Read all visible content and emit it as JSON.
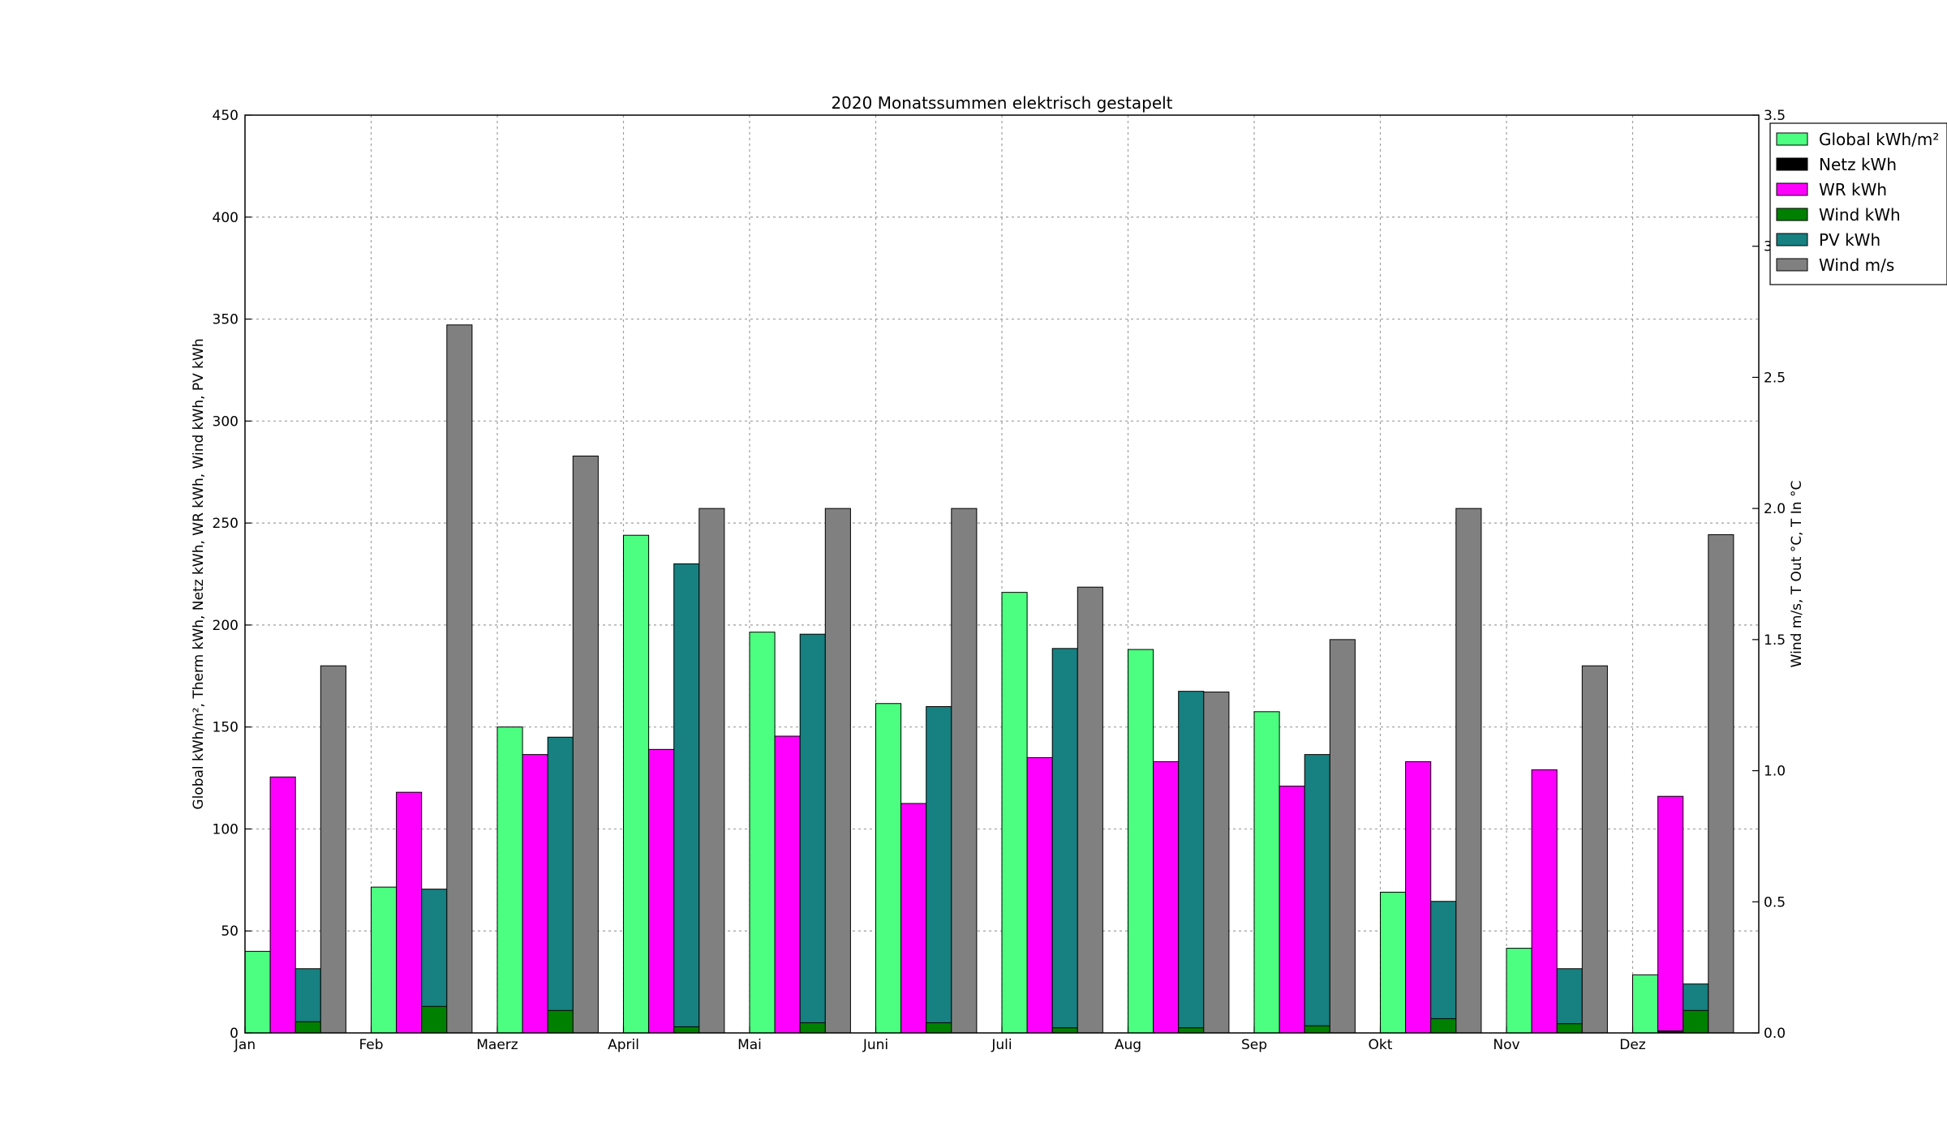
{
  "chart_data": {
    "type": "bar",
    "title": "2020 Monatssummen elektrisch gestapelt",
    "ylabel_left": "Global kWh/m², Therm kWh, Netz kWh, WR kWh, Wind kWh, PV kWh",
    "ylabel_right": "Wind m/s, T Out °C, T In °C",
    "ylim_left": [
      0,
      450
    ],
    "ylim_right": [
      0,
      3.5
    ],
    "yticks_left": [
      "0",
      "50",
      "100",
      "150",
      "200",
      "250",
      "300",
      "350",
      "400",
      "450"
    ],
    "yticks_right": [
      "0.0",
      "0.5",
      "1.0",
      "1.5",
      "2.0",
      "2.5",
      "3.0",
      "3.5"
    ],
    "grid": true,
    "legend_position": "top-right",
    "categories": [
      "Jan",
      "Feb",
      "Maerz",
      "April",
      "Mai",
      "Juni",
      "Juli",
      "Aug",
      "Sep",
      "Okt",
      "Nov",
      "Dez"
    ],
    "series": [
      {
        "name": "Global kWh/m²",
        "axis": "left",
        "color": "#4dff80",
        "values": [
          40,
          71.5,
          150,
          244,
          196.5,
          161.5,
          216,
          188,
          157.5,
          69,
          41.5,
          28.5
        ]
      },
      {
        "name": "Netz kWh",
        "axis": "left",
        "color": "#000000",
        "stacked_under": "WR kWh",
        "values": [
          0,
          0,
          0,
          0,
          0,
          0,
          0,
          0,
          0,
          0,
          0,
          1
        ]
      },
      {
        "name": "WR kWh",
        "axis": "left",
        "color": "#ff00ff",
        "values": [
          125.5,
          118,
          136.5,
          139,
          145.5,
          112.5,
          135,
          133,
          121,
          133,
          129,
          115
        ]
      },
      {
        "name": "Wind kWh",
        "axis": "left",
        "color": "#008000",
        "values": [
          5.5,
          13,
          11,
          3,
          5,
          5,
          2.5,
          2.5,
          3.5,
          7,
          4.5,
          11
        ]
      },
      {
        "name": "PV kWh",
        "axis": "left",
        "color": "#178080",
        "stacked_on": "Wind kWh",
        "values": [
          31.5,
          70.5,
          145,
          230,
          195.5,
          160,
          188.5,
          167.5,
          136.5,
          64.5,
          31.5,
          24
        ]
      },
      {
        "name": "Wind m/s",
        "axis": "right",
        "color": "#808080",
        "values": [
          1.4,
          2.7,
          2.2,
          2.0,
          2.0,
          2.0,
          1.7,
          1.3,
          1.5,
          2.0,
          1.4,
          1.9
        ]
      }
    ],
    "legend": [
      "Global kWh/m²",
      "Netz kWh",
      "WR kWh",
      "Wind kWh",
      "PV kWh",
      "Wind m/s"
    ]
  }
}
